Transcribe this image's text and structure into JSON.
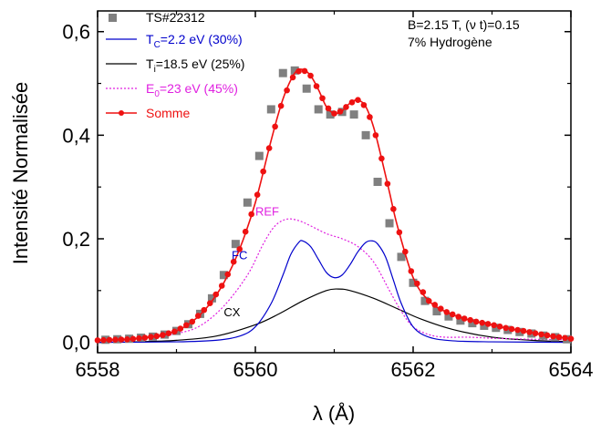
{
  "chart_data": {
    "type": "line",
    "xlabel": "λ (Å)",
    "ylabel": "Intensité Normalisée",
    "xlim": [
      6558,
      6564
    ],
    "ylim": [
      -0.02,
      0.64
    ],
    "x_ticks": [
      6558,
      6560,
      6562,
      6564
    ],
    "x_tick_labels": [
      "6558",
      "6560",
      "6562",
      "6564"
    ],
    "y_ticks": [
      0.0,
      0.2,
      0.4,
      0.6
    ],
    "y_tick_labels": [
      "0,0",
      "0,2",
      "0,4",
      "0,6"
    ],
    "info_line1": "B=2.15 T, (ν t)=0.15",
    "info_line2": "7% Hydrogène",
    "legend": [
      {
        "key": "ts",
        "label": "TS#22312",
        "color": "#808080"
      },
      {
        "key": "fc",
        "label_prefix": "T",
        "label_sub": "C",
        "label_suffix": "=2.2 eV (30%)",
        "color": "#0000cc"
      },
      {
        "key": "cx",
        "label_prefix": "T",
        "label_sub": "i",
        "label_suffix": "=18.5 eV (25%)",
        "color": "#000000"
      },
      {
        "key": "ref",
        "label_prefix": "E",
        "label_sub": "0",
        "label_suffix": "=23 eV   (45%)",
        "color": "#e020e0"
      },
      {
        "key": "somme",
        "label": "Somme",
        "color": "#ee1111"
      }
    ],
    "annotations": [
      {
        "key": "REF",
        "text": "REF",
        "color": "#e020e0"
      },
      {
        "key": "FC",
        "text": "FC",
        "color": "#0000cc"
      },
      {
        "key": "CX",
        "text": "CX",
        "color": "#000000"
      }
    ],
    "series": [
      {
        "name": "TS#22312",
        "style": "square-markers",
        "x": [
          6558.1,
          6558.25,
          6558.4,
          6558.55,
          6558.7,
          6558.85,
          6559.0,
          6559.15,
          6559.3,
          6559.45,
          6559.6,
          6559.75,
          6559.9,
          6560.05,
          6560.2,
          6560.35,
          6560.5,
          6560.65,
          6560.8,
          6560.95,
          6561.1,
          6561.25,
          6561.4,
          6561.55,
          6561.7,
          6561.85,
          6562.0,
          6562.15,
          6562.3,
          6562.45,
          6562.6,
          6562.75,
          6562.9,
          6563.05,
          6563.2,
          6563.35,
          6563.5,
          6563.65,
          6563.8,
          6563.95
        ],
        "y": [
          0.005,
          0.006,
          0.007,
          0.009,
          0.011,
          0.015,
          0.022,
          0.035,
          0.055,
          0.085,
          0.13,
          0.19,
          0.27,
          0.36,
          0.45,
          0.52,
          0.525,
          0.49,
          0.45,
          0.44,
          0.445,
          0.44,
          0.4,
          0.31,
          0.23,
          0.165,
          0.115,
          0.08,
          0.06,
          0.05,
          0.042,
          0.037,
          0.032,
          0.028,
          0.024,
          0.02,
          0.017,
          0.013,
          0.01,
          0.006
        ]
      },
      {
        "name": "Somme",
        "style": "line-dots",
        "x": [
          6558.0,
          6558.2,
          6558.4,
          6558.6,
          6558.8,
          6559.0,
          6559.2,
          6559.4,
          6559.6,
          6559.8,
          6560.0,
          6560.2,
          6560.35,
          6560.5,
          6560.6,
          6560.7,
          6560.8,
          6560.9,
          6561.0,
          6561.1,
          6561.2,
          6561.3,
          6561.4,
          6561.5,
          6561.6,
          6561.7,
          6561.8,
          6562.0,
          6562.2,
          6562.4,
          6562.6,
          6562.8,
          6563.0,
          6563.2,
          6563.4,
          6563.6,
          6563.8,
          6564.0
        ],
        "y": [
          0.004,
          0.005,
          0.006,
          0.009,
          0.013,
          0.022,
          0.04,
          0.07,
          0.115,
          0.18,
          0.27,
          0.39,
          0.47,
          0.52,
          0.527,
          0.515,
          0.488,
          0.455,
          0.442,
          0.447,
          0.462,
          0.468,
          0.455,
          0.415,
          0.355,
          0.29,
          0.225,
          0.125,
          0.08,
          0.06,
          0.048,
          0.04,
          0.034,
          0.027,
          0.022,
          0.016,
          0.011,
          0.007
        ]
      },
      {
        "name": "FC",
        "style": "line",
        "x": [
          6558.0,
          6559.0,
          6559.5,
          6559.8,
          6560.0,
          6560.2,
          6560.35,
          6560.45,
          6560.55,
          6560.6,
          6560.7,
          6560.8,
          6560.9,
          6561.0,
          6561.1,
          6561.2,
          6561.3,
          6561.4,
          6561.48,
          6561.55,
          6561.65,
          6561.75,
          6561.85,
          6562.0,
          6562.2,
          6562.5,
          6563.0,
          6564.0
        ],
        "y": [
          0.0,
          0.001,
          0.004,
          0.012,
          0.03,
          0.075,
          0.13,
          0.17,
          0.193,
          0.196,
          0.185,
          0.16,
          0.135,
          0.125,
          0.13,
          0.15,
          0.175,
          0.193,
          0.196,
          0.19,
          0.165,
          0.12,
          0.075,
          0.03,
          0.01,
          0.003,
          0.001,
          0.0
        ]
      },
      {
        "name": "CX",
        "style": "line",
        "x": [
          6558.0,
          6558.5,
          6559.0,
          6559.5,
          6560.0,
          6560.3,
          6560.6,
          6560.9,
          6561.05,
          6561.2,
          6561.5,
          6561.8,
          6562.1,
          6562.5,
          6563.0,
          6563.5,
          6564.0
        ],
        "y": [
          0.0,
          0.001,
          0.004,
          0.012,
          0.034,
          0.055,
          0.08,
          0.1,
          0.103,
          0.1,
          0.085,
          0.065,
          0.045,
          0.025,
          0.01,
          0.004,
          0.001
        ]
      },
      {
        "name": "REF",
        "style": "dotted",
        "x": [
          6558.0,
          6558.5,
          6559.0,
          6559.3,
          6559.6,
          6559.9,
          6560.1,
          6560.25,
          6560.4,
          6560.55,
          6560.7,
          6560.9,
          6561.1,
          6561.3,
          6561.5,
          6561.7,
          6561.85,
          6562.0,
          6562.2,
          6562.4,
          6562.7,
          6563.0,
          6563.5,
          6564.0
        ],
        "y": [
          0.002,
          0.006,
          0.017,
          0.032,
          0.07,
          0.13,
          0.19,
          0.225,
          0.238,
          0.235,
          0.225,
          0.21,
          0.2,
          0.185,
          0.155,
          0.1,
          0.06,
          0.03,
          0.015,
          0.01,
          0.01,
          0.008,
          0.006,
          0.005
        ]
      }
    ]
  }
}
